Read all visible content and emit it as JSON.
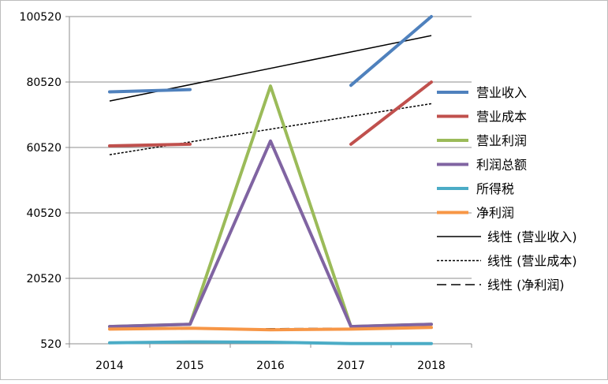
{
  "chart_data": {
    "type": "line",
    "title": "",
    "xlabel": "",
    "ylabel": "",
    "categories": [
      "2014",
      "2015",
      "2016",
      "2017",
      "2018"
    ],
    "ylim": [
      520,
      100520
    ],
    "yticks": [
      520,
      20520,
      40520,
      60520,
      80520,
      100520
    ],
    "grid": true,
    "legend_position": "right",
    "series": [
      {
        "name": "营业收入",
        "color": "#4F81BD",
        "values": [
          77500,
          78200,
          null,
          79500,
          100520
        ]
      },
      {
        "name": "营业成本",
        "color": "#C0504D",
        "values": [
          61000,
          61500,
          null,
          61500,
          80500
        ]
      },
      {
        "name": "营业利润",
        "color": "#9BBB59",
        "values": [
          5800,
          6500,
          79300,
          5800,
          6500
        ]
      },
      {
        "name": "利润总额",
        "color": "#8064A2",
        "values": [
          5800,
          6500,
          62500,
          5800,
          6500
        ]
      },
      {
        "name": "所得税",
        "color": "#4BACC6",
        "values": [
          800,
          1100,
          1000,
          600,
          600
        ]
      },
      {
        "name": "净利润",
        "color": "#F79646",
        "values": [
          5000,
          5300,
          4800,
          5000,
          5500
        ]
      }
    ],
    "trendlines": [
      {
        "name": "线性 (营业收入)",
        "style": "solid",
        "values_at_ends": [
          74700,
          94700
        ]
      },
      {
        "name": "线性 (营业成本)",
        "style": "dotted",
        "values_at_ends": [
          58300,
          73900
        ]
      },
      {
        "name": "线性 (净利润)",
        "style": "dashed",
        "values_at_ends": [
          4900,
          5400
        ]
      }
    ]
  }
}
